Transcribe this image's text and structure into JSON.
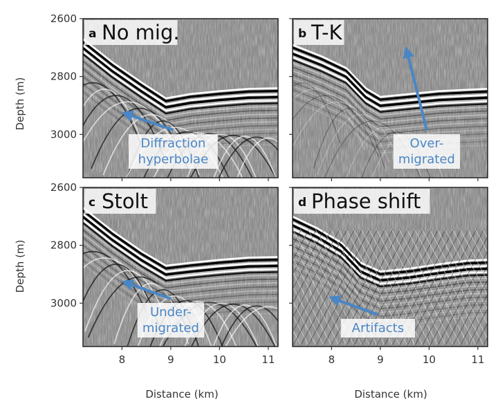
{
  "chart_data": {
    "type": "image",
    "layout": "2x2 panels, shared axes",
    "xlabel": "Distance (km)",
    "ylabel": "Depth (m)",
    "xlim": [
      7.2,
      11.2
    ],
    "ylim": [
      3150,
      2600
    ],
    "y_inverted": true,
    "xticks": [
      8,
      9,
      10,
      11
    ],
    "yticks": [
      2600,
      2800,
      3000
    ],
    "colormap": "grayscale seismic amplitude",
    "annotation_color": "#4a86c5",
    "panels": [
      {
        "letter": "a",
        "title": "No mig.",
        "annotation": {
          "lines": [
            "Diffraction",
            "hyperbolae"
          ],
          "arrow_tip": [
            8.1,
            2930
          ],
          "arrow_tail": [
            9.05,
            2985
          ]
        },
        "reflector": [
          [
            7.2,
            2680
          ],
          [
            7.8,
            2760
          ],
          [
            8.4,
            2830
          ],
          [
            8.9,
            2885
          ],
          [
            9.4,
            2870
          ],
          [
            10.0,
            2860
          ],
          [
            10.6,
            2852
          ],
          [
            11.2,
            2850
          ]
        ],
        "artifact": "diffractions"
      },
      {
        "letter": "b",
        "title": "T-K",
        "annotation": {
          "lines": [
            "Over-",
            "migrated"
          ],
          "arrow_tip": [
            9.55,
            2715
          ],
          "arrow_tail": [
            9.95,
            2985
          ]
        },
        "reflector": [
          [
            7.2,
            2700
          ],
          [
            7.8,
            2740
          ],
          [
            8.3,
            2780
          ],
          [
            8.7,
            2850
          ],
          [
            9.0,
            2880
          ],
          [
            9.6,
            2870
          ],
          [
            10.2,
            2860
          ],
          [
            10.8,
            2855
          ],
          [
            11.2,
            2852
          ]
        ],
        "artifact": "smeared"
      },
      {
        "letter": "c",
        "title": "Stolt",
        "annotation": {
          "lines": [
            "Under-",
            "migrated"
          ],
          "arrow_tip": [
            8.1,
            2930
          ],
          "arrow_tail": [
            9.0,
            2985
          ]
        },
        "reflector": [
          [
            7.2,
            2680
          ],
          [
            7.8,
            2760
          ],
          [
            8.4,
            2830
          ],
          [
            8.9,
            2880
          ],
          [
            9.4,
            2870
          ],
          [
            10.0,
            2860
          ],
          [
            10.6,
            2852
          ],
          [
            11.2,
            2850
          ]
        ],
        "artifact": "diffractions"
      },
      {
        "letter": "d",
        "title": "Phase shift",
        "annotation": {
          "lines": [
            "Artifacts"
          ],
          "arrow_tip": [
            8.05,
            2985
          ],
          "arrow_tail": [
            8.95,
            3040
          ]
        },
        "reflector": [
          [
            7.2,
            2710
          ],
          [
            7.7,
            2750
          ],
          [
            8.2,
            2800
          ],
          [
            8.6,
            2870
          ],
          [
            9.0,
            2900
          ],
          [
            9.6,
            2890
          ],
          [
            10.2,
            2875
          ],
          [
            10.8,
            2862
          ],
          [
            11.2,
            2860
          ]
        ],
        "artifact": "crosshatch"
      }
    ]
  }
}
